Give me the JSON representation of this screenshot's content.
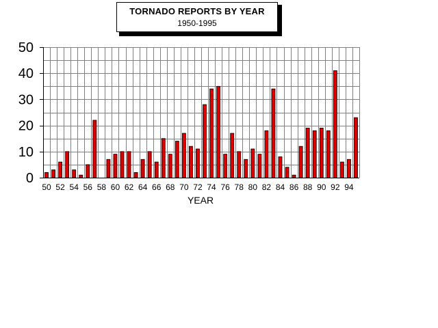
{
  "chart_data": {
    "type": "bar",
    "title": "TORNADO REPORTS BY YEAR",
    "subtitle": "1950-1995",
    "xlabel": "YEAR",
    "ylabel": "",
    "ylim": [
      0,
      50
    ],
    "yticks": [
      "0",
      "10",
      "20",
      "30",
      "40",
      "50"
    ],
    "grid": true,
    "bar_color": "#dd0000",
    "categories": [
      "50",
      "51",
      "52",
      "53",
      "54",
      "55",
      "56",
      "57",
      "58",
      "59",
      "60",
      "61",
      "62",
      "63",
      "64",
      "65",
      "66",
      "67",
      "68",
      "69",
      "70",
      "71",
      "72",
      "73",
      "74",
      "75",
      "76",
      "77",
      "78",
      "79",
      "80",
      "81",
      "82",
      "83",
      "84",
      "85",
      "86",
      "87",
      "88",
      "89",
      "90",
      "91",
      "92",
      "93",
      "94",
      "95"
    ],
    "xtick_labels": [
      "50",
      "52",
      "54",
      "56",
      "58",
      "60",
      "62",
      "64",
      "66",
      "68",
      "70",
      "72",
      "74",
      "76",
      "78",
      "80",
      "82",
      "84",
      "86",
      "88",
      "90",
      "92",
      "94"
    ],
    "values": [
      2,
      3,
      6,
      10,
      3,
      1,
      5,
      22,
      0,
      7,
      9,
      10,
      10,
      2,
      7,
      10,
      6,
      15,
      9,
      14,
      17,
      12,
      11,
      28,
      34,
      35,
      9,
      17,
      10,
      7,
      11,
      9,
      18,
      34,
      8,
      4,
      1,
      12,
      19,
      18,
      19,
      18,
      41,
      6,
      7,
      23
    ]
  }
}
